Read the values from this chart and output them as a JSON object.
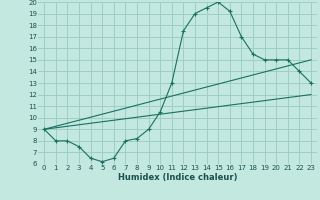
{
  "xlabel": "Humidex (Indice chaleur)",
  "bg_color": "#c2e8e0",
  "grid_color": "#9ecec6",
  "line_color": "#1a7060",
  "xlim": [
    -0.5,
    23.5
  ],
  "ylim": [
    6,
    20
  ],
  "xticks": [
    0,
    1,
    2,
    3,
    4,
    5,
    6,
    7,
    8,
    9,
    10,
    11,
    12,
    13,
    14,
    15,
    16,
    17,
    18,
    19,
    20,
    21,
    22,
    23
  ],
  "yticks": [
    6,
    7,
    8,
    9,
    10,
    11,
    12,
    13,
    14,
    15,
    16,
    17,
    18,
    19,
    20
  ],
  "curve1_x": [
    0,
    1,
    2,
    3,
    4,
    5,
    6,
    7,
    8,
    9,
    10,
    11,
    12,
    13,
    14,
    15,
    16,
    17,
    18,
    19,
    20,
    21,
    22,
    23
  ],
  "curve1_y": [
    9,
    8,
    8,
    7.5,
    6.5,
    6.2,
    6.5,
    8,
    8.2,
    9,
    10.5,
    13,
    17.5,
    19,
    19.5,
    20,
    19.2,
    17,
    15.5,
    15,
    15,
    15,
    14,
    13
  ],
  "curve2_x": [
    0,
    23
  ],
  "curve2_y": [
    9,
    12
  ],
  "curve3_x": [
    0,
    23
  ],
  "curve3_y": [
    9,
    15
  ]
}
